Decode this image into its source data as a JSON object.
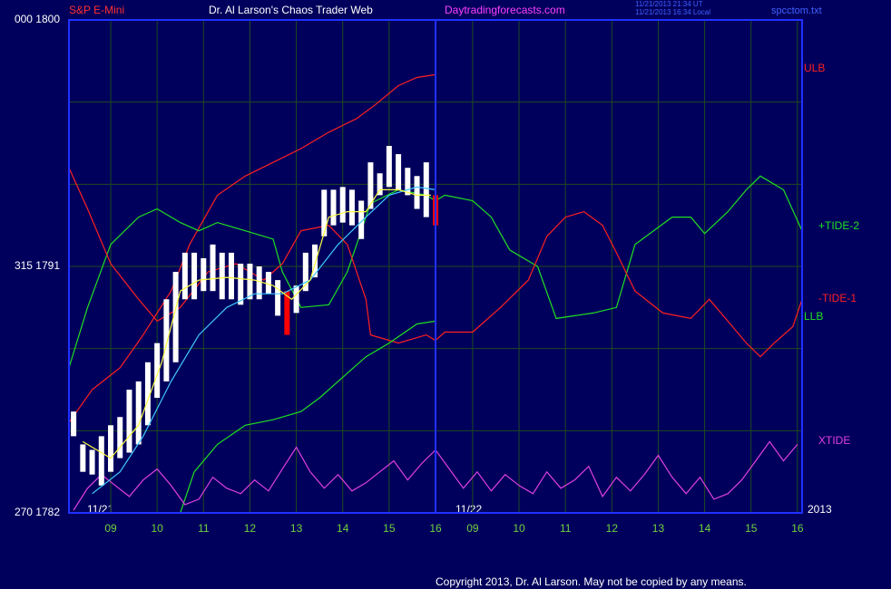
{
  "chart_data": {
    "type": "line",
    "header": {
      "symbol": "S&P E-Mini",
      "title": "Dr. Al Larson's Chaos Trader Web",
      "site": "Daytradingforecasts.com",
      "timestamps": [
        "11/21/2013 21:34 UT",
        "11/21/2013 16:34 Local"
      ],
      "file": "spcctom.txt"
    },
    "footer": "Copyright 2013, Dr. Al Larson. May not be copied by any means.",
    "date_labels": [
      "11/21",
      "11/22",
      "2013"
    ],
    "xlim": [
      8.1,
      23.9
    ],
    "xticks": [
      {
        "value": 9,
        "label": "09"
      },
      10,
      11,
      12,
      13,
      14,
      15,
      16,
      {
        "value": 16.8,
        "label": "09"
      },
      {
        "value": 17.8,
        "label": "10"
      },
      {
        "value": 18.8,
        "label": "11"
      },
      {
        "value": 19.8,
        "label": "12"
      },
      {
        "value": 20.8,
        "label": "13"
      },
      {
        "value": 21.8,
        "label": "14"
      },
      {
        "value": 22.8,
        "label": "15"
      },
      {
        "value": 23.8,
        "label": "16"
      }
    ],
    "ylim": [
      1782,
      1800
    ],
    "yticks": [
      {
        "value": 1782,
        "label": "270  1782"
      },
      {
        "value": 1791,
        "label": "315  1791"
      },
      {
        "value": 1800,
        "label": "000  1800"
      }
    ],
    "ygrid": [
      1785,
      1788,
      1791,
      1794,
      1797
    ],
    "grid": true,
    "divider": 16,
    "bars": {
      "color": "#ffffff",
      "down_color": "#ff0000",
      "down": [
        23,
        39
      ],
      "x": [
        8.2,
        8.4,
        8.6,
        8.8,
        9.0,
        9.2,
        9.4,
        9.6,
        9.8,
        10.0,
        10.2,
        10.4,
        10.6,
        10.8,
        11.0,
        11.2,
        11.4,
        11.6,
        11.8,
        12.0,
        12.2,
        12.4,
        12.6,
        12.8,
        13.0,
        13.2,
        13.4,
        13.6,
        13.8,
        14.0,
        14.2,
        14.4,
        14.6,
        14.8,
        15.0,
        15.2,
        15.4,
        15.6,
        15.8,
        16.0
      ],
      "high": [
        1785.7,
        1784.5,
        1784.3,
        1784.8,
        1785.2,
        1785.5,
        1786.5,
        1786.8,
        1787.5,
        1788.2,
        1789.8,
        1790.8,
        1791.5,
        1791.5,
        1791.3,
        1791.8,
        1791.5,
        1791.5,
        1791.1,
        1791.1,
        1791.0,
        1790.8,
        1790.5,
        1790.1,
        1790.3,
        1791.5,
        1791.8,
        1793.8,
        1793.8,
        1793.9,
        1793.8,
        1793.4,
        1794.8,
        1794.4,
        1795.4,
        1795.1,
        1794.6,
        1794.3,
        1794.8,
        1793.6
      ],
      "low": [
        1784.8,
        1783.5,
        1783.4,
        1783.0,
        1783.5,
        1784.0,
        1784.2,
        1784.5,
        1785.2,
        1786.2,
        1786.8,
        1787.5,
        1789.8,
        1789.8,
        1790.1,
        1790.1,
        1789.8,
        1789.8,
        1789.6,
        1789.8,
        1789.8,
        1790.0,
        1789.2,
        1788.5,
        1789.3,
        1790.1,
        1790.6,
        1792.1,
        1792.5,
        1792.6,
        1792.5,
        1792.0,
        1793.1,
        1793.6,
        1793.9,
        1793.8,
        1793.6,
        1793.1,
        1792.8,
        1792.5
      ]
    },
    "series": [
      {
        "name": "ULB",
        "color": "#ff2020",
        "x": [
          8.1,
          8.6,
          9.2,
          9.7,
          10.3,
          10.7,
          11.3,
          11.9,
          12.5,
          13.1,
          13.7,
          14.3,
          14.7,
          15.2,
          15.6,
          16.0
        ],
        "values": [
          1785.3,
          1786.5,
          1787.3,
          1788.5,
          1790.1,
          1791.8,
          1793.6,
          1794.3,
          1794.8,
          1795.3,
          1795.9,
          1796.4,
          1796.9,
          1797.6,
          1797.9,
          1798.0
        ]
      },
      {
        "name": "+TIDE-2",
        "color": "#20e020",
        "x": [
          8.1,
          8.5,
          9.0,
          9.6,
          10.0,
          10.5,
          10.9,
          11.3,
          11.9,
          12.5,
          12.7,
          13.1,
          13.7,
          14.1,
          14.4,
          14.6,
          15.2,
          15.8,
          16.0,
          16.2,
          16.8,
          17.2,
          17.6,
          18.2,
          18.6,
          19.4,
          19.9,
          20.3,
          21.1,
          21.5,
          21.8,
          22.3,
          22.7,
          23.0,
          23.5,
          23.9
        ],
        "values": [
          1787.3,
          1789.5,
          1791.8,
          1792.8,
          1793.1,
          1792.6,
          1792.3,
          1792.6,
          1792.3,
          1792.0,
          1790.8,
          1789.5,
          1789.6,
          1790.8,
          1792.3,
          1793.3,
          1793.8,
          1793.6,
          1793.4,
          1793.6,
          1793.4,
          1792.8,
          1791.6,
          1791.0,
          1789.1,
          1789.3,
          1789.5,
          1791.8,
          1792.8,
          1792.8,
          1792.2,
          1793.0,
          1793.8,
          1794.3,
          1793.8,
          1792.3
        ]
      },
      {
        "name": "-TIDE-1",
        "color": "#ff2020",
        "x": [
          8.1,
          8.5,
          9.0,
          9.6,
          10.0,
          10.5,
          11.1,
          11.7,
          12.3,
          12.7,
          13.1,
          13.7,
          14.1,
          14.5,
          14.6,
          15.2,
          15.8,
          16.0,
          16.2,
          16.8,
          17.4,
          18.0,
          18.4,
          18.8,
          19.2,
          19.6,
          19.9,
          20.3,
          20.9,
          21.5,
          21.9,
          22.3,
          22.7,
          23.0,
          23.3,
          23.7,
          23.9
        ],
        "values": [
          1794.6,
          1793.1,
          1791.1,
          1789.8,
          1789.0,
          1789.5,
          1790.8,
          1791.1,
          1790.5,
          1791.1,
          1792.3,
          1792.5,
          1791.8,
          1789.8,
          1788.5,
          1788.2,
          1788.5,
          1788.3,
          1788.6,
          1788.6,
          1789.5,
          1790.5,
          1792.1,
          1792.8,
          1793.0,
          1792.5,
          1791.5,
          1790.1,
          1789.3,
          1789.1,
          1789.8,
          1789.0,
          1788.2,
          1787.7,
          1788.2,
          1788.8,
          1789.8
        ]
      },
      {
        "name": "LLB",
        "color": "#20e020",
        "x": [
          10.5,
          10.8,
          11.3,
          11.9,
          12.5,
          13.1,
          13.5,
          13.9,
          14.5,
          15.0,
          15.6,
          16.0
        ],
        "values": [
          1782.0,
          1783.5,
          1784.5,
          1785.2,
          1785.4,
          1785.7,
          1786.2,
          1786.8,
          1787.7,
          1788.2,
          1788.9,
          1789.0
        ]
      },
      {
        "name": "XTIDE",
        "color": "#e040e0",
        "x": [
          8.2,
          8.5,
          8.8,
          9.1,
          9.4,
          9.7,
          10.0,
          10.3,
          10.6,
          10.9,
          11.2,
          11.5,
          11.8,
          12.1,
          12.4,
          12.7,
          13.0,
          13.3,
          13.6,
          13.9,
          14.2,
          14.5,
          14.8,
          15.1,
          15.4,
          15.7,
          16.0,
          16.3,
          16.6,
          16.9,
          17.2,
          17.5,
          17.8,
          18.1,
          18.4,
          18.7,
          19.0,
          19.3,
          19.6,
          19.9,
          20.2,
          20.5,
          20.8,
          21.1,
          21.4,
          21.7,
          22.0,
          22.3,
          22.6,
          22.9,
          23.2,
          23.5,
          23.8
        ],
        "values": [
          1782.1,
          1782.9,
          1783.4,
          1783.0,
          1782.6,
          1783.2,
          1783.6,
          1783.0,
          1782.3,
          1782.5,
          1783.3,
          1782.9,
          1782.7,
          1783.2,
          1782.8,
          1783.6,
          1784.4,
          1783.5,
          1782.9,
          1783.4,
          1782.8,
          1783.1,
          1783.5,
          1783.9,
          1783.2,
          1783.8,
          1784.3,
          1783.6,
          1782.9,
          1783.5,
          1782.8,
          1783.4,
          1783.0,
          1782.7,
          1783.5,
          1782.9,
          1783.2,
          1783.7,
          1782.6,
          1783.3,
          1782.8,
          1783.4,
          1784.1,
          1783.3,
          1782.7,
          1783.3,
          1782.5,
          1782.7,
          1783.2,
          1783.9,
          1784.6,
          1783.9,
          1784.5
        ]
      },
      {
        "color": "#40c8ff",
        "x": [
          8.6,
          9.2,
          9.7,
          10.3,
          10.9,
          11.5,
          12.1,
          12.7,
          13.3,
          13.9,
          14.5,
          15.0,
          15.6,
          16.0
        ],
        "values": [
          1782.7,
          1783.5,
          1784.8,
          1786.8,
          1788.5,
          1789.5,
          1790.0,
          1790.0,
          1790.5,
          1791.8,
          1792.8,
          1793.6,
          1793.9,
          1793.8
        ]
      },
      {
        "color": "#ffff40",
        "x": [
          8.4,
          9.0,
          9.6,
          10.1,
          10.5,
          10.9,
          11.5,
          12.1,
          12.5,
          12.9,
          13.3,
          13.7,
          14.1,
          14.5,
          14.8,
          15.2,
          15.6,
          15.9
        ],
        "values": [
          1784.6,
          1784.0,
          1785.2,
          1787.5,
          1790.1,
          1790.5,
          1790.6,
          1790.5,
          1790.3,
          1789.8,
          1790.5,
          1792.8,
          1793.0,
          1793.0,
          1793.8,
          1793.8,
          1793.6,
          1793.6
        ]
      }
    ]
  }
}
